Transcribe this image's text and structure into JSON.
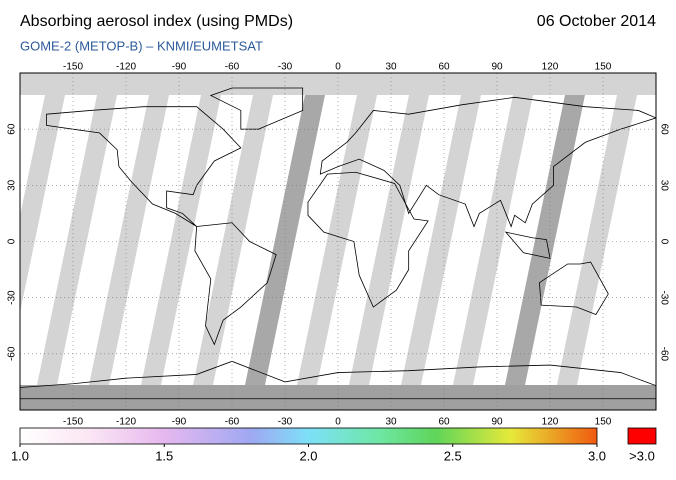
{
  "title": "Absorbing aerosol index (using PMDs)",
  "date": "06 October 2014",
  "subtitle": "GOME-2 (METOP-B)  –  KNMI/EUMETSAT",
  "map": {
    "lon_ticks": [
      -150,
      -120,
      -90,
      -60,
      -30,
      0,
      30,
      60,
      90,
      120,
      150
    ],
    "lat_ticks": [
      60,
      30,
      0,
      -30,
      -60
    ]
  },
  "colorbar": {
    "ticks": [
      {
        "value": 1,
        "label": "1.0"
      },
      1.5,
      {
        "value": 2,
        "label": "2.0"
      },
      2.5,
      {
        "value": 3,
        "label": "3.0"
      }
    ],
    "range": [
      1,
      3
    ],
    "over_label": ">3.0"
  }
}
